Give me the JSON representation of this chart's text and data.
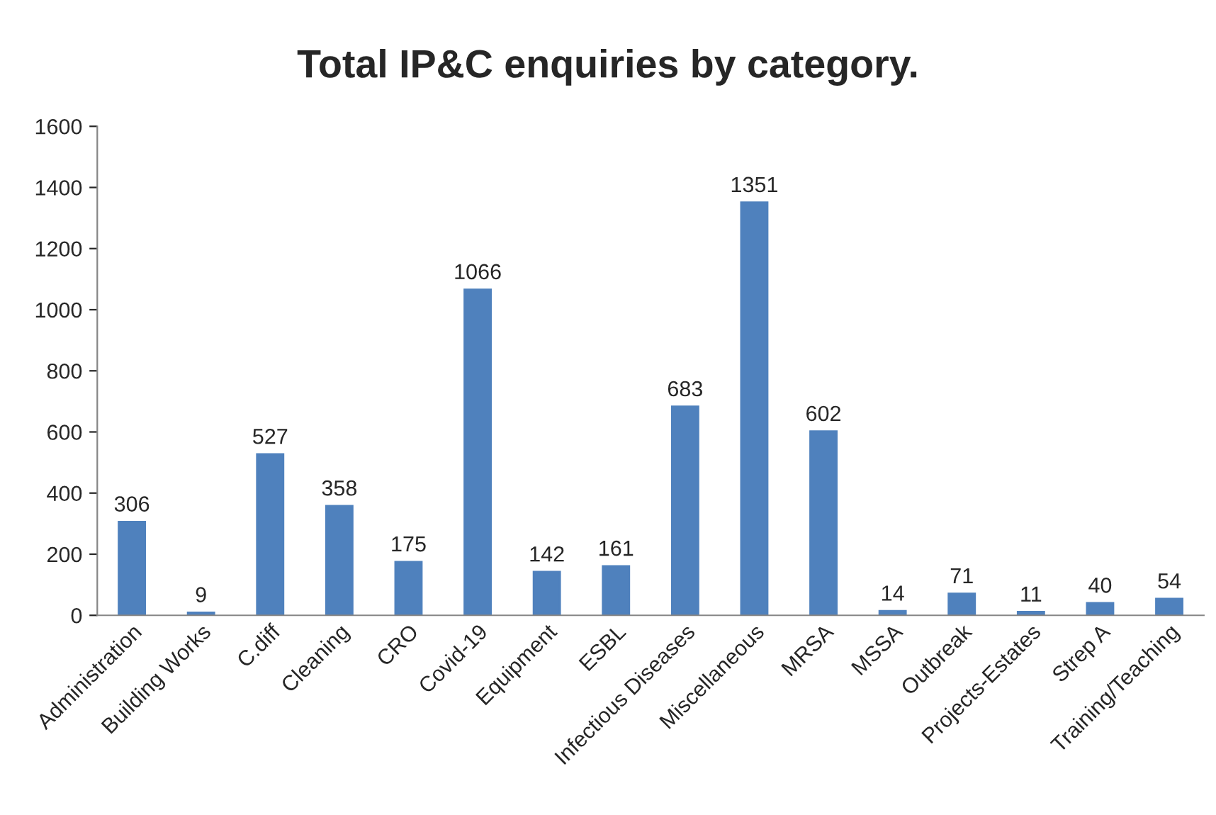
{
  "chart_data": {
    "type": "bar",
    "title": "Total IP&C enquiries by category.",
    "categories": [
      "Administration",
      "Building Works",
      "C.diff",
      "Cleaning",
      "CRO",
      "Covid-19",
      "Equipment",
      "ESBL",
      "Infectious Diseases",
      "Miscellaneous",
      "MRSA",
      "MSSA",
      "Outbreak",
      "Projects-Estates",
      "Strep A",
      "Training/Teaching"
    ],
    "values": [
      306,
      9,
      527,
      358,
      175,
      1066,
      142,
      161,
      683,
      1351,
      602,
      14,
      71,
      11,
      40,
      54
    ],
    "color": "#4f81bd",
    "data_labels": true,
    "grid": false,
    "ylim": [
      0,
      1600
    ],
    "yticks": [
      0,
      200,
      400,
      600,
      800,
      1000,
      1200,
      1400,
      1600
    ]
  }
}
